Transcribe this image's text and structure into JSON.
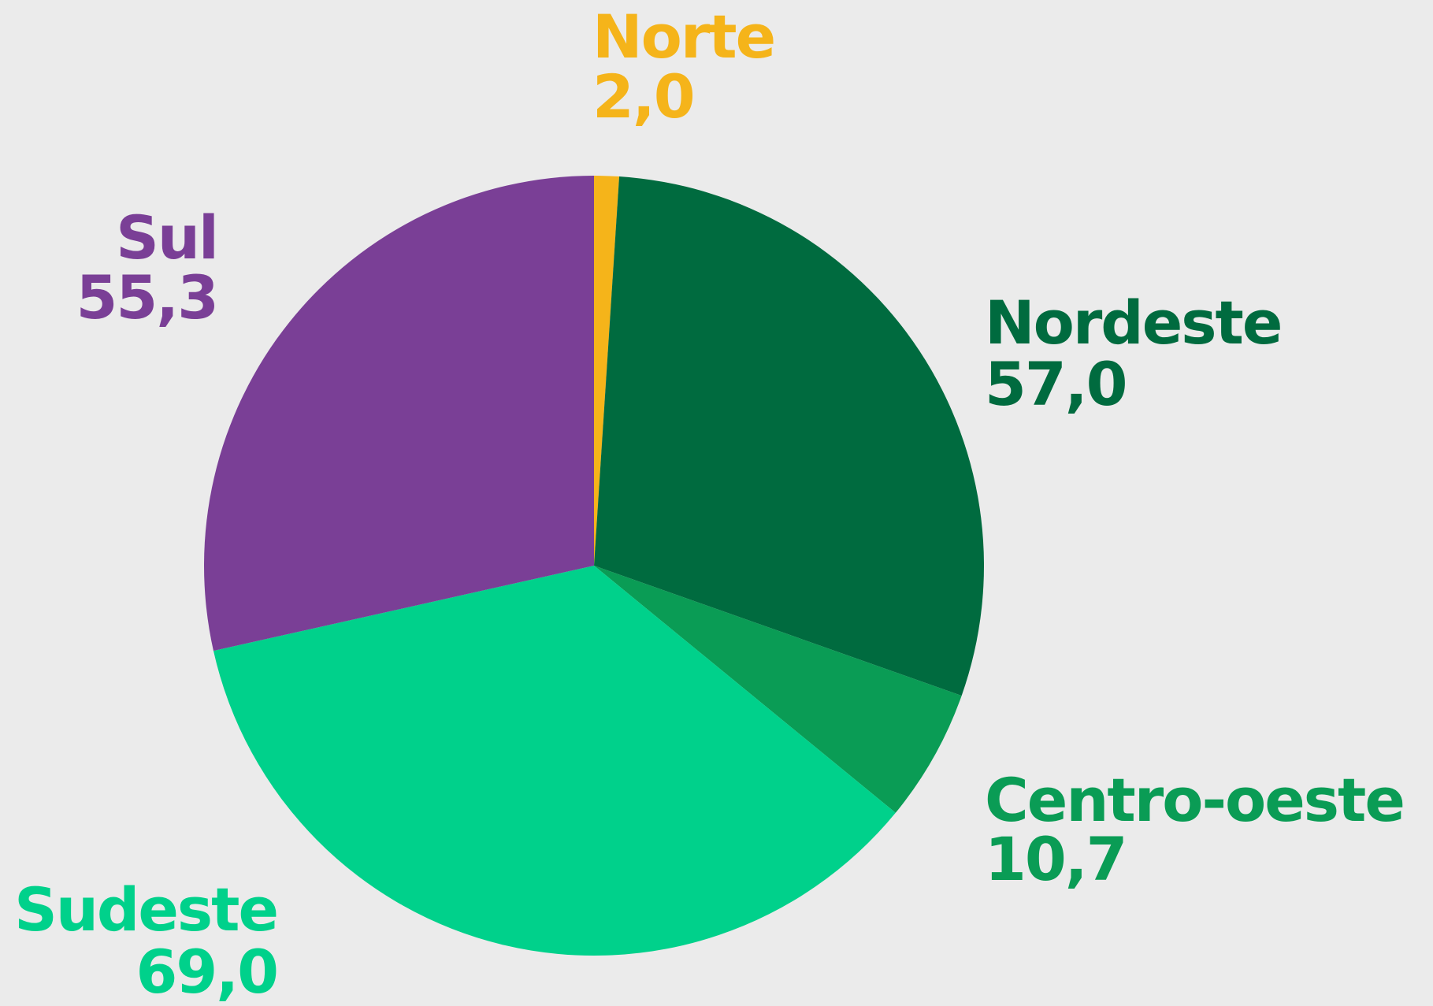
{
  "chart_data": {
    "type": "pie",
    "categories": [
      "Norte",
      "Nordeste",
      "Centro-oeste",
      "Sudeste",
      "Sul"
    ],
    "values": [
      2.0,
      57.0,
      10.7,
      69.0,
      55.3
    ],
    "value_labels": [
      "2,0",
      "57,0",
      "10,7",
      "69,0",
      "55,3"
    ],
    "colors": [
      "#f5b41a",
      "#006b3f",
      "#0a9c55",
      "#00d18b",
      "#7a3f96"
    ]
  }
}
